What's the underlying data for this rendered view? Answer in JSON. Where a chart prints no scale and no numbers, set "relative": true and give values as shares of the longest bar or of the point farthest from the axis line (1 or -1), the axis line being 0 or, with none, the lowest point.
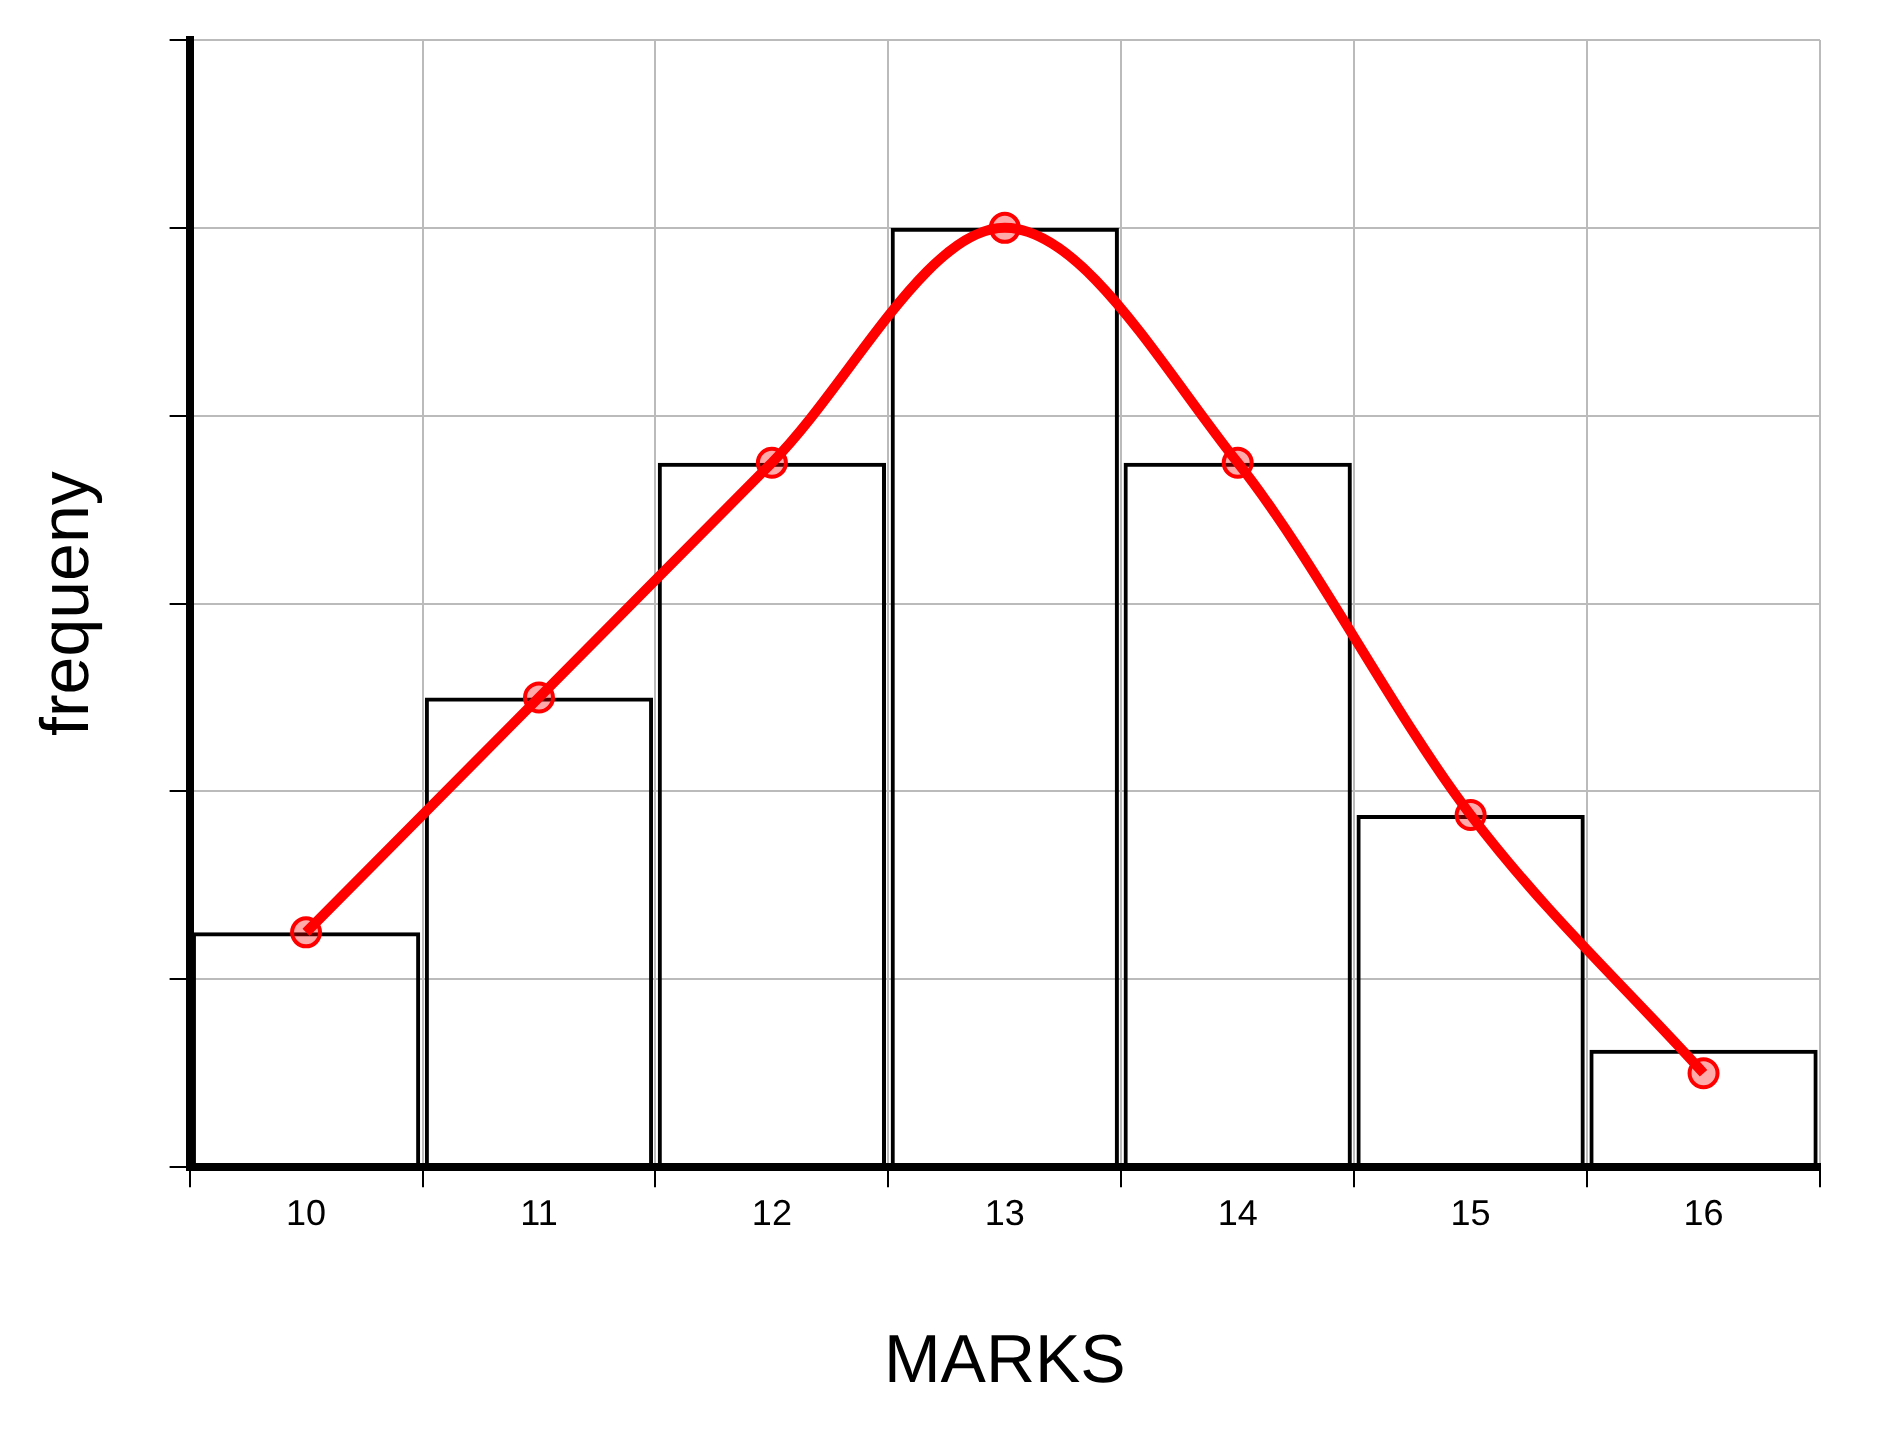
{
  "chart_data": {
    "type": "bar",
    "relative": true,
    "xlabel": "MARKS",
    "ylabel": "frequeny",
    "categories": [
      "10",
      "11",
      "12",
      "13",
      "14",
      "15",
      "16"
    ],
    "series": [
      {
        "color": "#000000",
        "values": [
          0.25,
          0.5,
          0.75,
          1,
          0.75,
          0.375,
          0.125
        ]
      },
      {
        "type": "line",
        "color": "#ff0000",
        "values": [
          0.25,
          0.5,
          0.75,
          1,
          0.75,
          0.375,
          0.1
        ],
        "marker": "circle"
      }
    ],
    "grid": true,
    "legend": false
  }
}
